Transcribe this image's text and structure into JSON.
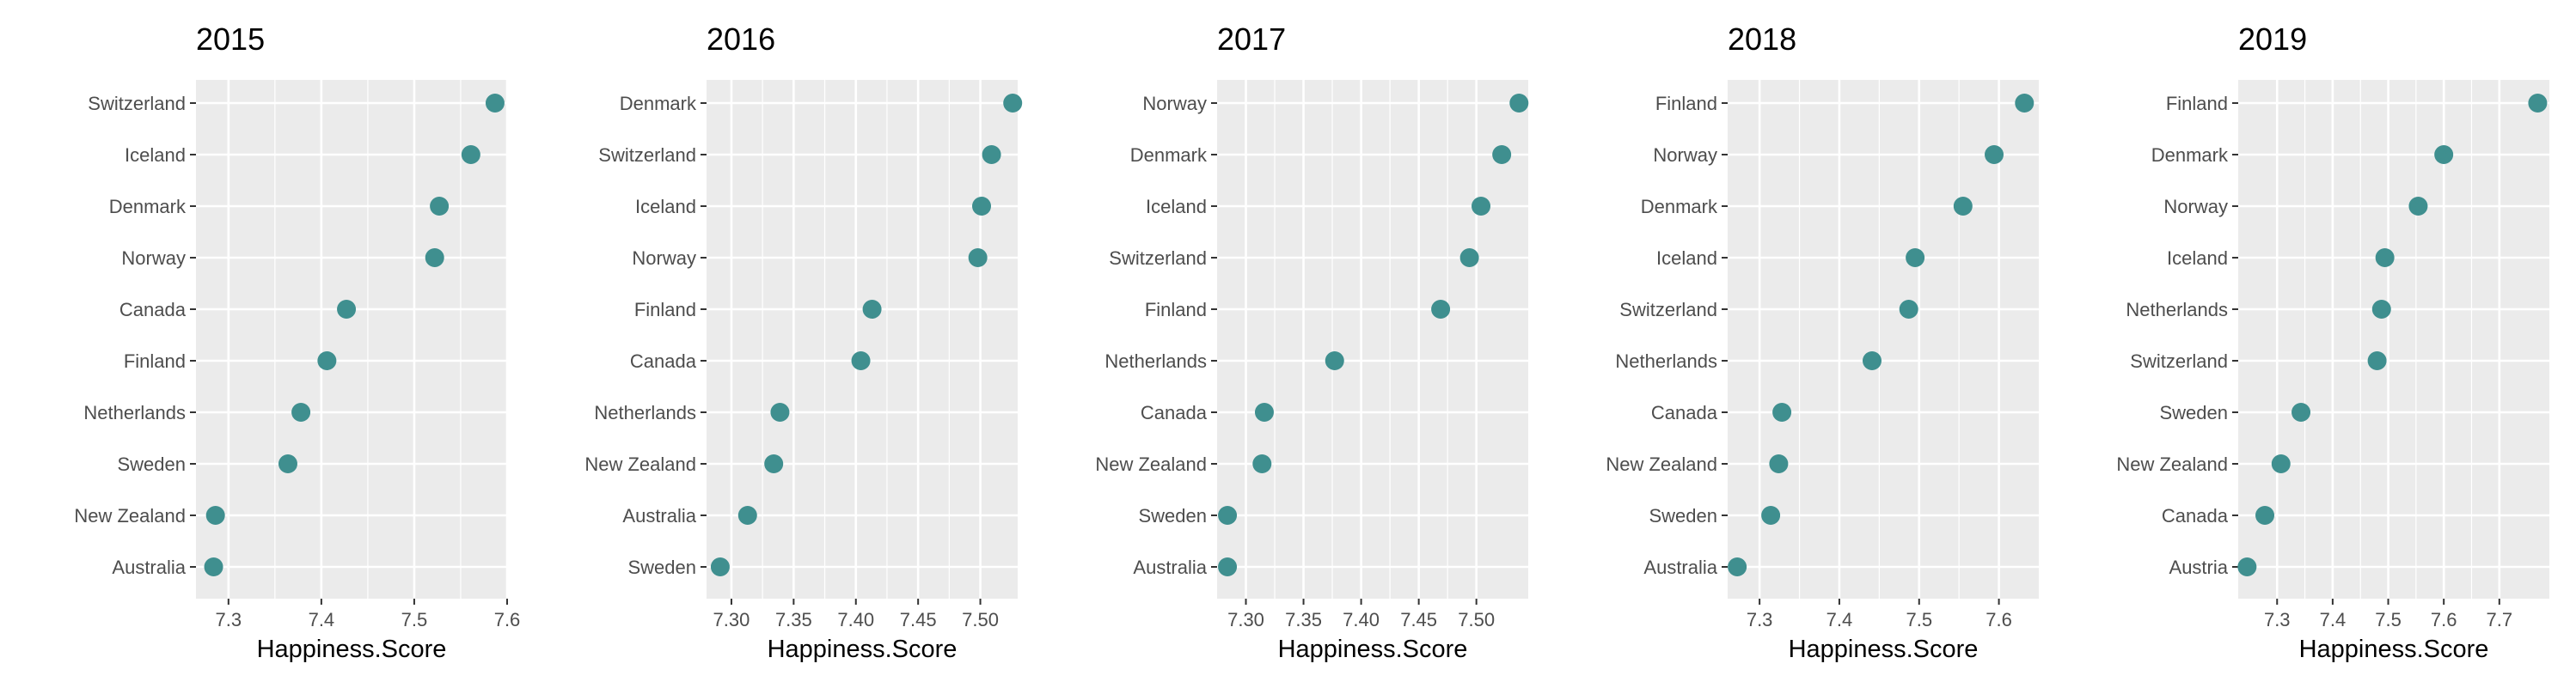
{
  "chart_data": [
    {
      "type": "scatter",
      "title": "2015",
      "xlabel": "Happiness.Score",
      "xlim": [
        7.265,
        7.6
      ],
      "xticks": [
        7.3,
        7.4,
        7.5,
        7.6
      ],
      "xtick_labels": [
        "7.3",
        "7.4",
        "7.5",
        "7.6"
      ],
      "categories": [
        "Switzerland",
        "Iceland",
        "Denmark",
        "Norway",
        "Canada",
        "Finland",
        "Netherlands",
        "Sweden",
        "New Zealand",
        "Australia"
      ],
      "values": [
        7.587,
        7.561,
        7.527,
        7.522,
        7.427,
        7.406,
        7.378,
        7.364,
        7.286,
        7.284
      ]
    },
    {
      "type": "scatter",
      "title": "2016",
      "xlabel": "Happiness.Score",
      "xlim": [
        7.28,
        7.53
      ],
      "xticks": [
        7.3,
        7.35,
        7.4,
        7.45,
        7.5
      ],
      "xtick_labels": [
        "7.30",
        "7.35",
        "7.40",
        "7.45",
        "7.50"
      ],
      "categories": [
        "Denmark",
        "Switzerland",
        "Iceland",
        "Norway",
        "Finland",
        "Canada",
        "Netherlands",
        "New Zealand",
        "Australia",
        "Sweden"
      ],
      "values": [
        7.526,
        7.509,
        7.501,
        7.498,
        7.413,
        7.404,
        7.339,
        7.334,
        7.313,
        7.291
      ]
    },
    {
      "type": "scatter",
      "title": "2017",
      "xlabel": "Happiness.Score",
      "xlim": [
        7.275,
        7.545
      ],
      "xticks": [
        7.3,
        7.35,
        7.4,
        7.45,
        7.5
      ],
      "xtick_labels": [
        "7.30",
        "7.35",
        "7.40",
        "7.45",
        "7.50"
      ],
      "categories": [
        "Norway",
        "Denmark",
        "Iceland",
        "Switzerland",
        "Finland",
        "Netherlands",
        "Canada",
        "New Zealand",
        "Sweden",
        "Australia"
      ],
      "values": [
        7.537,
        7.522,
        7.504,
        7.494,
        7.469,
        7.377,
        7.316,
        7.314,
        7.284,
        7.284
      ]
    },
    {
      "type": "scatter",
      "title": "2018",
      "xlabel": "Happiness.Score",
      "xlim": [
        7.26,
        7.65
      ],
      "xticks": [
        7.3,
        7.4,
        7.5,
        7.6
      ],
      "xtick_labels": [
        "7.3",
        "7.4",
        "7.5",
        "7.6"
      ],
      "categories": [
        "Finland",
        "Norway",
        "Denmark",
        "Iceland",
        "Switzerland",
        "Netherlands",
        "Canada",
        "New Zealand",
        "Sweden",
        "Australia"
      ],
      "values": [
        7.632,
        7.594,
        7.555,
        7.495,
        7.487,
        7.441,
        7.328,
        7.324,
        7.314,
        7.272
      ]
    },
    {
      "type": "scatter",
      "title": "2019",
      "xlabel": "Happiness.Score",
      "xlim": [
        7.23,
        7.79
      ],
      "xticks": [
        7.3,
        7.4,
        7.5,
        7.6,
        7.7
      ],
      "xtick_labels": [
        "7.3",
        "7.4",
        "7.5",
        "7.6",
        "7.7"
      ],
      "categories": [
        "Finland",
        "Denmark",
        "Norway",
        "Iceland",
        "Netherlands",
        "Switzerland",
        "Sweden",
        "New Zealand",
        "Canada",
        "Austria"
      ],
      "values": [
        7.769,
        7.6,
        7.554,
        7.494,
        7.488,
        7.48,
        7.343,
        7.307,
        7.278,
        7.246
      ]
    }
  ],
  "colors": {
    "point": "#3f8f8f",
    "panel_background": "#ebebeb",
    "gridline": "#ffffff"
  }
}
